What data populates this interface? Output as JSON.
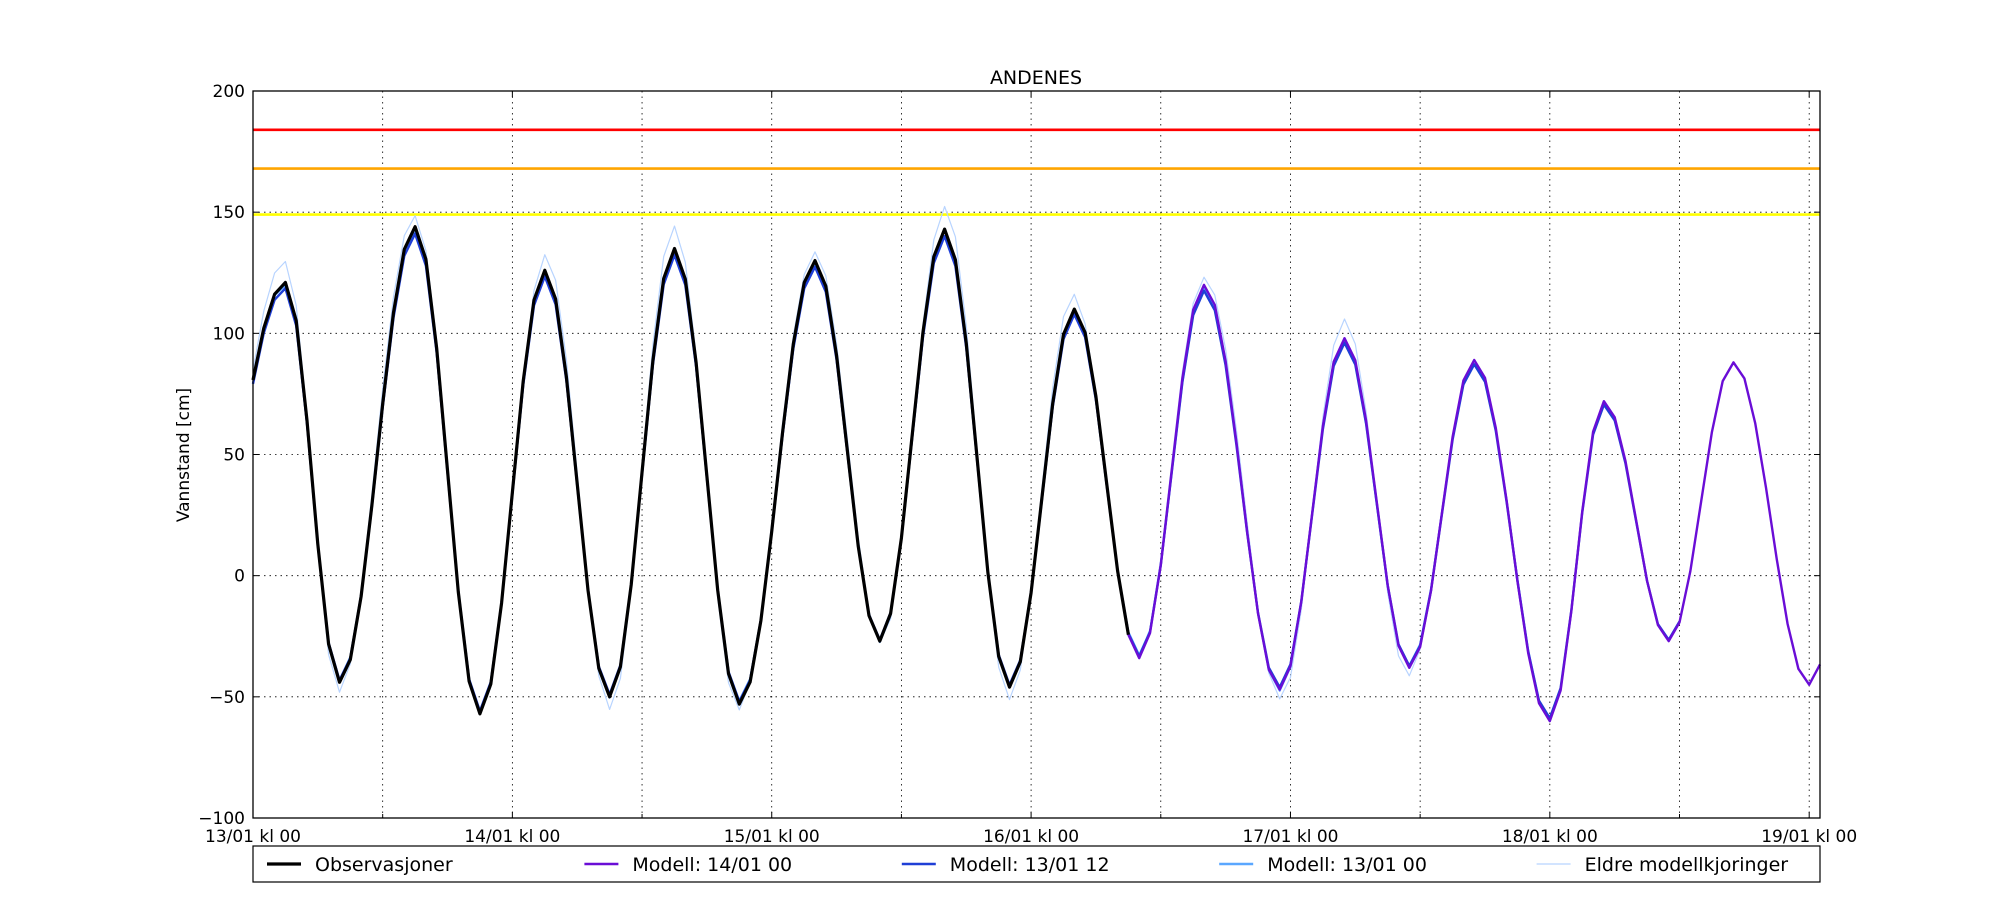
{
  "chart_data": {
    "type": "line",
    "title": "ANDENES",
    "ylabel": "Vannstand [cm]",
    "xlabel": "",
    "x_unit": "hours since 13/01 kl 00",
    "xlim": [
      0,
      145
    ],
    "ylim": [
      -100,
      200
    ],
    "yticks": [
      -100,
      -50,
      0,
      50,
      100,
      150,
      200
    ],
    "xticks": [
      {
        "x": 0,
        "label": "13/01 kl 00"
      },
      {
        "x": 24,
        "label": "14/01 kl 00"
      },
      {
        "x": 48,
        "label": "15/01 kl 00"
      },
      {
        "x": 72,
        "label": "16/01 kl 00"
      },
      {
        "x": 96,
        "label": "17/01 kl 00"
      },
      {
        "x": 120,
        "label": "18/01 kl 00"
      },
      {
        "x": 144,
        "label": "19/01 kl 00"
      }
    ],
    "minor_xgrid": [
      12,
      36,
      60,
      84,
      108,
      132
    ],
    "grid": true,
    "legend_position": "bottom",
    "thresholds": [
      {
        "value": 184,
        "color": "#ff0000"
      },
      {
        "value": 168,
        "color": "#ffa500"
      },
      {
        "value": 149,
        "color": "#ffff00"
      }
    ],
    "tide": {
      "start": 0,
      "step": 1,
      "extrema": [
        {
          "t": -6,
          "v": -40
        },
        {
          "t": 3,
          "v": 121
        },
        {
          "t": 8,
          "v": -44
        },
        {
          "t": 15,
          "v": 144
        },
        {
          "t": 21,
          "v": -57
        },
        {
          "t": 27,
          "v": 126
        },
        {
          "t": 33,
          "v": -50
        },
        {
          "t": 39,
          "v": 135
        },
        {
          "t": 45,
          "v": -53
        },
        {
          "t": 52,
          "v": 130
        },
        {
          "t": 58,
          "v": -27
        },
        {
          "t": 64,
          "v": 143
        },
        {
          "t": 70,
          "v": -46
        },
        {
          "t": 76,
          "v": 110
        },
        {
          "t": 82,
          "v": -34
        },
        {
          "t": 88,
          "v": 120
        },
        {
          "t": 95,
          "v": -47
        },
        {
          "t": 101,
          "v": 98
        },
        {
          "t": 107,
          "v": -38
        },
        {
          "t": 113,
          "v": 89
        },
        {
          "t": 120,
          "v": -60
        },
        {
          "t": 125,
          "v": 72
        },
        {
          "t": 131,
          "v": -27
        },
        {
          "t": 137,
          "v": 88
        },
        {
          "t": 144,
          "v": -45
        },
        {
          "t": 150,
          "v": 80
        }
      ]
    },
    "series": [
      {
        "name": "Observasjoner",
        "color": "#000000",
        "width": 3.2,
        "start": 0,
        "end": 81,
        "offset": 0,
        "scale": 1.0
      },
      {
        "name": "Modell: 14/01 00",
        "color": "#6a0dd6",
        "width": 2.4,
        "start": 0,
        "end": 145,
        "offset": 0,
        "scale": 1.0
      },
      {
        "name": "Modell: 13/01 12",
        "color": "#1f3fd6",
        "width": 2.4,
        "start": 0,
        "end": 132,
        "offset": 0,
        "scale": 0.98
      },
      {
        "name": "Modell: 13/01 00",
        "color": "#5aa7ff",
        "width": 2.0,
        "start": 0,
        "end": 120,
        "offset": 1,
        "scale": 0.99
      },
      {
        "name": "Eldre modellkjoringer",
        "color": "#b8d4ff",
        "width": 1.2,
        "start": 0,
        "end": 108,
        "offset": 3,
        "scale": 1.05
      }
    ],
    "legend": [
      "Observasjoner",
      "Modell: 14/01 00",
      "Modell: 13/01 12",
      "Modell: 13/01 00",
      "Eldre modellkjoringer"
    ],
    "legend_colors": [
      "#000000",
      "#6a0dd6",
      "#1f3fd6",
      "#5aa7ff",
      "#b8d4ff"
    ]
  }
}
